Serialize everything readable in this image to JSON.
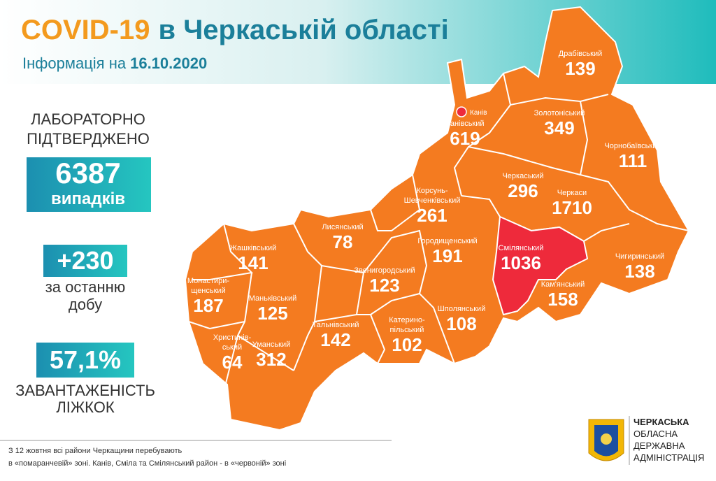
{
  "header": {
    "title_main": "COVID-19",
    "title_rest": "в Черкаській області",
    "subtitle": "Інформація на",
    "date": "16.10.2020"
  },
  "stats": {
    "confirmed_label": [
      "ЛАБОРАТОРНО",
      "ПІДТВЕРДЖЕНО"
    ],
    "total": "6387",
    "total_unit": "випадків",
    "new": "+230",
    "new_label": [
      "за останню",
      "добу"
    ],
    "load": "57,1%",
    "load_label": [
      "ЗАВАНТАЖЕНІСТЬ",
      "ЛІЖКОК"
    ]
  },
  "city": "Канів",
  "districts": [
    {
      "name": [
        "Драбівський"
      ],
      "count": "139"
    },
    {
      "name": [
        "Канівський"
      ],
      "count": "619"
    },
    {
      "name": [
        "Золотоніський"
      ],
      "count": "349"
    },
    {
      "name": [
        "Чорнобаївський"
      ],
      "count": "111"
    },
    {
      "name": [
        "Черкаський"
      ],
      "count": "296"
    },
    {
      "name": [
        "Черкаси"
      ],
      "count": "1710"
    },
    {
      "name": [
        "Корсунь-",
        "Шевченківський"
      ],
      "count": "261"
    },
    {
      "name": [
        "Лисянський"
      ],
      "count": "78"
    },
    {
      "name": [
        "Жашківський"
      ],
      "count": "141"
    },
    {
      "name": [
        "Городищенський"
      ],
      "count": "191"
    },
    {
      "name": [
        "Смілянський"
      ],
      "count": "1036"
    },
    {
      "name": [
        "Чигиринський"
      ],
      "count": "138"
    },
    {
      "name": [
        "Монастири-",
        "щенський"
      ],
      "count": "187"
    },
    {
      "name": [
        "Звенигородський"
      ],
      "count": "123"
    },
    {
      "name": [
        "Маньківський"
      ],
      "count": "125"
    },
    {
      "name": [
        "Кам'янський"
      ],
      "count": "158"
    },
    {
      "name": [
        "Катерино-",
        "пільський"
      ],
      "count": "102"
    },
    {
      "name": [
        "Шполянський"
      ],
      "count": "108"
    },
    {
      "name": [
        "Тальнівський"
      ],
      "count": "142"
    },
    {
      "name": [
        "Христинів-",
        "ський"
      ],
      "count": "64"
    },
    {
      "name": [
        "Уманський"
      ],
      "count": "312"
    }
  ],
  "footer": [
    "З 12 жовтня всі райони Черкащини перебувають",
    "в «помаранчевій» зоні. Канів, Сміла та Смілянський район - в «червоній» зоні"
  ],
  "logo": [
    "ЧЕРКАСЬКА",
    "ОБЛАСНА",
    "ДЕРЖАВНА",
    "АДМІНІСТРАЦІЯ"
  ]
}
